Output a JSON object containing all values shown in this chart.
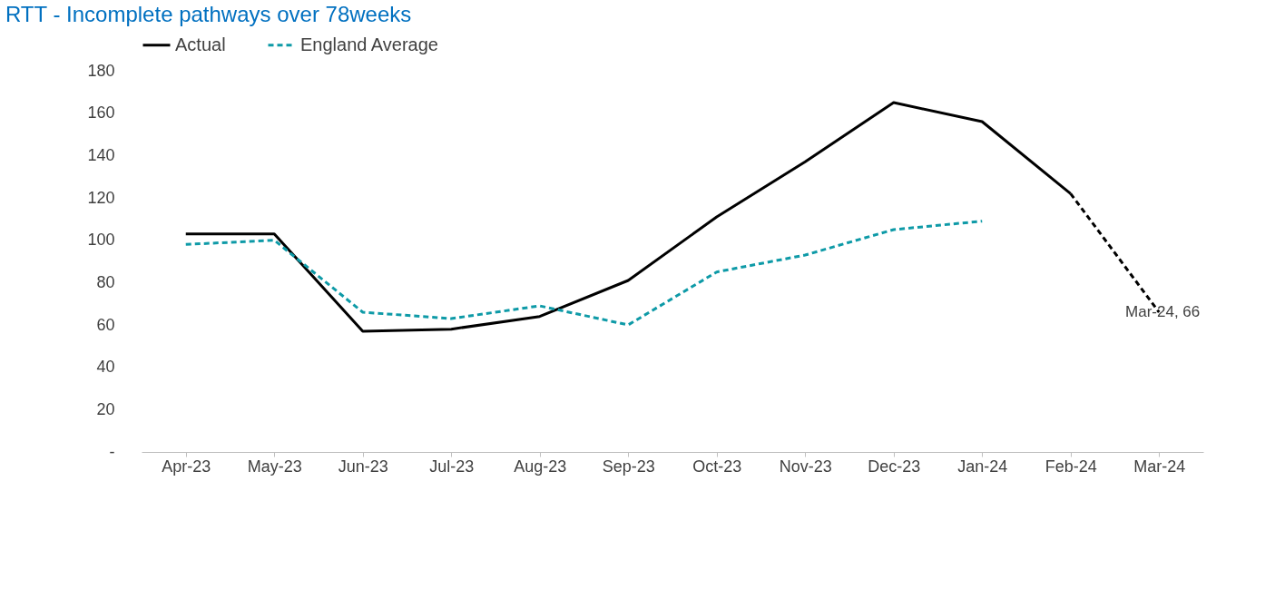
{
  "chart_data": {
    "type": "line",
    "title": "RTT - Incomplete pathways over 78weeks",
    "categories": [
      "Apr-23",
      "May-23",
      "Jun-23",
      "Jul-23",
      "Aug-23",
      "Sep-23",
      "Oct-23",
      "Nov-23",
      "Dec-23",
      "Jan-24",
      "Feb-24",
      "Mar-24"
    ],
    "series": [
      {
        "name": "Actual",
        "color": "#000000",
        "line_style": "solid",
        "values": [
          103,
          103,
          57,
          58,
          64,
          81,
          111,
          137,
          165,
          156,
          122,
          null
        ]
      },
      {
        "name": "England Average",
        "color": "#0e9aa7",
        "line_style": "dashed",
        "values": [
          98,
          100,
          66,
          63,
          69,
          60,
          85,
          93,
          105,
          109,
          null,
          null
        ]
      },
      {
        "color": "#000000",
        "line_style": "dashed",
        "values": [
          null,
          null,
          null,
          null,
          null,
          null,
          null,
          null,
          null,
          null,
          122,
          66
        ]
      }
    ],
    "ylim": [
      0,
      180
    ],
    "yticks": [
      {
        "value": 0,
        "label": "-"
      },
      20,
      40,
      60,
      80,
      100,
      120,
      140,
      160,
      180
    ],
    "grid": false,
    "legend": "top",
    "marker": "none",
    "annotations": [
      {
        "text": "Mar-24,  66",
        "x": "Mar-24",
        "y": 66
      }
    ]
  }
}
